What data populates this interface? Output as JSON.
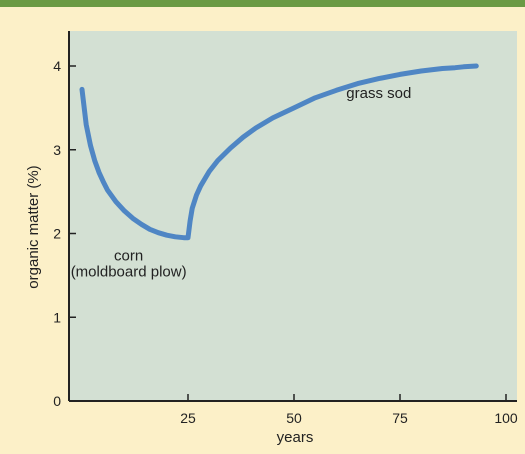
{
  "colors": {
    "background": "#fcf0c8",
    "top_bar": "#6a9a44",
    "plot_area": "#d3e0d3",
    "curve": "#4f86c4",
    "axis": "#222222"
  },
  "chart_data": {
    "type": "line",
    "title": "",
    "xlabel": "years",
    "ylabel": "organic matter (%)",
    "xlim": [
      0,
      100
    ],
    "ylim": [
      0,
      4.2
    ],
    "xticks": [
      25,
      50,
      75,
      100
    ],
    "yticks": [
      0,
      1,
      2,
      3,
      4
    ],
    "xtick_labels": [
      "25",
      "50",
      "75",
      "100"
    ],
    "ytick_labels": [
      "0",
      "1",
      "2",
      "3",
      "4"
    ],
    "grid": false,
    "legend": "none",
    "series": [
      {
        "x": [
          0,
          1,
          2,
          3,
          4,
          5,
          6,
          8,
          10,
          12,
          14,
          16,
          18,
          20,
          22,
          24,
          24.5,
          25,
          25.5,
          26,
          27,
          28,
          30,
          32,
          35,
          38,
          41,
          45,
          50,
          55,
          60,
          65,
          70,
          75,
          80,
          85,
          88,
          90,
          93
        ],
        "y": [
          3.72,
          3.3,
          3.05,
          2.87,
          2.73,
          2.62,
          2.52,
          2.38,
          2.27,
          2.18,
          2.11,
          2.05,
          2.01,
          1.98,
          1.96,
          1.95,
          1.95,
          1.95,
          2.15,
          2.3,
          2.46,
          2.57,
          2.74,
          2.87,
          3.02,
          3.15,
          3.26,
          3.38,
          3.5,
          3.62,
          3.71,
          3.79,
          3.85,
          3.9,
          3.94,
          3.97,
          3.98,
          3.99,
          4.0
        ]
      }
    ],
    "annotations": [
      {
        "lines": [
          "corn",
          "(moldboard plow)"
        ],
        "x": 11,
        "y": 1.95
      },
      {
        "lines": [
          "grass sod"
        ],
        "x": 70,
        "y": 3.68
      }
    ]
  }
}
